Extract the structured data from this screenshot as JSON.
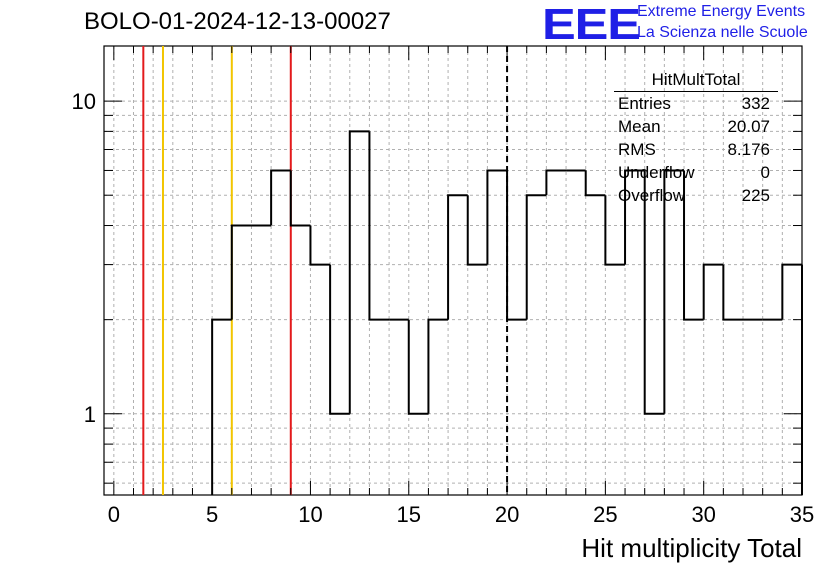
{
  "header": {
    "title": "BOLO-01-2024-12-13-00027"
  },
  "logo": {
    "mark": "EEE",
    "line1": "Extreme Energy Events",
    "line2": "La Scienza nelle Scuole",
    "color": "#1f1fe6"
  },
  "stats": {
    "title": "HitMultTotal",
    "rows": [
      {
        "label": "Entries",
        "value": "332"
      },
      {
        "label": "Mean",
        "value": "20.07"
      },
      {
        "label": "RMS",
        "value": "8.176"
      },
      {
        "label": "Underflow",
        "value": "0"
      },
      {
        "label": "Overflow",
        "value": "225"
      }
    ]
  },
  "chart_data": {
    "type": "histogram",
    "xlabel": "Hit multiplicity Total",
    "ylabel": "",
    "xlim": [
      -0.5,
      35
    ],
    "ylim": [
      0.55,
      15
    ],
    "yscale": "log",
    "grid": true,
    "x_ticks": [
      "0",
      "5",
      "10",
      "15",
      "20",
      "25",
      "30",
      "35"
    ],
    "y_ticks": [
      "1",
      "10"
    ],
    "bin_width": 1,
    "bins": [
      {
        "x": 5.5,
        "count": 2
      },
      {
        "x": 6.5,
        "count": 4
      },
      {
        "x": 7.5,
        "count": 4
      },
      {
        "x": 8.5,
        "count": 6
      },
      {
        "x": 9.5,
        "count": 4
      },
      {
        "x": 10.5,
        "count": 3
      },
      {
        "x": 11.5,
        "count": 1
      },
      {
        "x": 12.5,
        "count": 8
      },
      {
        "x": 13.5,
        "count": 2
      },
      {
        "x": 14.5,
        "count": 2
      },
      {
        "x": 15.5,
        "count": 1
      },
      {
        "x": 16.5,
        "count": 2
      },
      {
        "x": 17.5,
        "count": 5
      },
      {
        "x": 18.5,
        "count": 3
      },
      {
        "x": 19.5,
        "count": 6
      },
      {
        "x": 20.5,
        "count": 2
      },
      {
        "x": 21.5,
        "count": 5
      },
      {
        "x": 22.5,
        "count": 6
      },
      {
        "x": 23.5,
        "count": 6
      },
      {
        "x": 24.5,
        "count": 5
      },
      {
        "x": 25.5,
        "count": 3
      },
      {
        "x": 26.5,
        "count": 6
      },
      {
        "x": 27.5,
        "count": 1
      },
      {
        "x": 28.5,
        "count": 6
      },
      {
        "x": 29.5,
        "count": 2
      },
      {
        "x": 30.5,
        "count": 3
      },
      {
        "x": 31.5,
        "count": 2
      },
      {
        "x": 32.5,
        "count": 2
      },
      {
        "x": 33.5,
        "count": 2
      },
      {
        "x": 34.5,
        "count": 3
      }
    ],
    "vertical_lines": [
      {
        "x": 1.5,
        "color": "#e31a1c",
        "style": "solid"
      },
      {
        "x": 2.5,
        "color": "#f2c500",
        "style": "solid"
      },
      {
        "x": 6,
        "color": "#f2c500",
        "style": "solid"
      },
      {
        "x": 9,
        "color": "#e31a1c",
        "style": "solid"
      },
      {
        "x": 20,
        "color": "#000000",
        "style": "dashed"
      }
    ]
  }
}
